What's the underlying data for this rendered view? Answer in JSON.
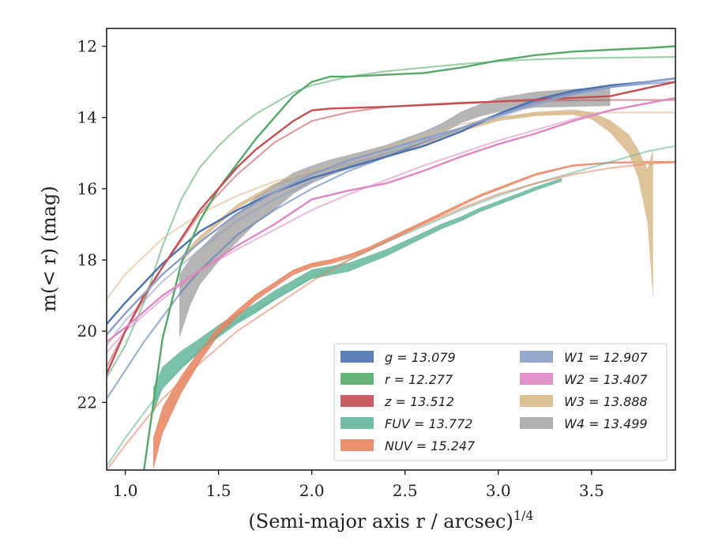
{
  "chart_data": {
    "type": "line",
    "xlabel": "(Semi-major axis r / arcsec)",
    "xlabel_exponent": "1/4",
    "ylabel": "m(< r) (mag)",
    "xlim": [
      0.9,
      3.95
    ],
    "ylim": [
      23.9,
      11.5
    ],
    "y_inverted": true,
    "x_ticks": [
      1.0,
      1.5,
      2.0,
      2.5,
      3.0,
      3.5
    ],
    "x_tick_labels": [
      "1.0",
      "1.5",
      "2.0",
      "2.5",
      "3.0",
      "3.5"
    ],
    "y_ticks": [
      12,
      14,
      16,
      18,
      20,
      22
    ],
    "y_tick_labels": [
      "12",
      "14",
      "16",
      "18",
      "20",
      "22"
    ],
    "legend_position": "lower-right",
    "series": [
      {
        "name": "g = 13.079",
        "color": "#4c72b0",
        "x": [
          0.9,
          1.0,
          1.2,
          1.4,
          1.6,
          1.8,
          2.0,
          2.2,
          2.4,
          2.6,
          2.8,
          3.0,
          3.2,
          3.4,
          3.6,
          3.8,
          3.95
        ],
        "y": [
          19.8,
          19.2,
          18.1,
          17.2,
          16.6,
          16.1,
          15.7,
          15.4,
          15.1,
          14.8,
          14.4,
          13.9,
          13.5,
          13.25,
          13.1,
          13.0,
          12.9
        ],
        "model_x": [
          0.9,
          1.0,
          1.1,
          1.2,
          1.3,
          1.4,
          1.5,
          1.6,
          1.8,
          2.0,
          2.2,
          2.4,
          2.6,
          2.8,
          3.0,
          3.2,
          3.4,
          3.6,
          3.8,
          3.95
        ],
        "model_y": [
          21.9,
          21.1,
          20.3,
          19.6,
          18.9,
          18.3,
          17.8,
          17.3,
          16.6,
          16.0,
          15.5,
          15.1,
          14.7,
          14.3,
          13.9,
          13.55,
          13.3,
          13.15,
          13.05,
          13.0
        ]
      },
      {
        "name": "r = 12.277",
        "color": "#55a868",
        "x": [
          1.1,
          1.2,
          1.3,
          1.4,
          1.5,
          1.6,
          1.7,
          1.8,
          1.9,
          2.0,
          2.1,
          2.2,
          2.4,
          2.6,
          2.8,
          3.0,
          3.2,
          3.4,
          3.6,
          3.8,
          3.95
        ],
        "y": [
          23.9,
          20.2,
          18.1,
          16.9,
          16.0,
          15.3,
          14.6,
          14.0,
          13.4,
          13.0,
          12.85,
          12.85,
          12.8,
          12.75,
          12.6,
          12.4,
          12.25,
          12.15,
          12.1,
          12.05,
          12.0
        ],
        "model_x": [
          0.9,
          1.0,
          1.1,
          1.2,
          1.3,
          1.4,
          1.5,
          1.6,
          1.7,
          1.8,
          1.9,
          2.0,
          2.2,
          2.4,
          2.6,
          2.8,
          3.0,
          3.2,
          3.4,
          3.6,
          3.8,
          3.95
        ],
        "model_y": [
          21.3,
          20.4,
          19.2,
          17.6,
          16.3,
          15.4,
          14.8,
          14.3,
          13.9,
          13.6,
          13.3,
          13.1,
          12.85,
          12.7,
          12.6,
          12.5,
          12.42,
          12.37,
          12.34,
          12.32,
          12.31,
          12.3
        ]
      },
      {
        "name": "z = 13.512",
        "color": "#c44e52",
        "x": [
          0.9,
          1.0,
          1.1,
          1.2,
          1.3,
          1.4,
          1.5,
          1.6,
          1.7,
          1.8,
          1.9,
          2.0,
          2.1,
          2.4,
          2.8,
          3.2,
          3.6,
          3.95
        ],
        "y": [
          21.2,
          20.0,
          19.0,
          18.2,
          17.4,
          16.6,
          16.0,
          15.4,
          14.9,
          14.5,
          14.1,
          13.8,
          13.75,
          13.7,
          13.6,
          13.5,
          13.4,
          13.0
        ],
        "model_x": [
          0.9,
          1.0,
          1.2,
          1.4,
          1.6,
          1.8,
          2.0,
          2.2,
          2.4,
          2.8,
          3.2,
          3.6,
          3.95
        ],
        "model_y": [
          21.0,
          20.0,
          18.2,
          16.7,
          15.6,
          14.7,
          14.1,
          13.85,
          13.7,
          13.58,
          13.53,
          13.51,
          13.51
        ]
      },
      {
        "name": "FUV = 13.772",
        "color": "#64b59b",
        "x": [
          1.15,
          1.2,
          1.3,
          1.4,
          1.5,
          1.6,
          1.7,
          1.8,
          1.9,
          2.0,
          2.1,
          2.2,
          2.3,
          2.4,
          2.5,
          2.6,
          2.7,
          2.8,
          2.9,
          3.0,
          3.1,
          3.2,
          3.34
        ],
        "y": [
          21.95,
          21.3,
          20.8,
          20.4,
          20.0,
          19.65,
          19.35,
          19.0,
          18.7,
          18.4,
          18.3,
          18.2,
          18.0,
          17.8,
          17.55,
          17.3,
          17.05,
          16.85,
          16.6,
          16.4,
          16.2,
          16.0,
          15.75
        ],
        "width": [
          0.75,
          0.6,
          0.5,
          0.4,
          0.35,
          0.3,
          0.28,
          0.28,
          0.27,
          0.27,
          0.25,
          0.25,
          0.22,
          0.2,
          0.18,
          0.16,
          0.15,
          0.14,
          0.13,
          0.12,
          0.12,
          0.11,
          0.1
        ],
        "model_x": [
          0.9,
          1.0,
          1.2,
          1.4,
          1.6,
          1.8,
          2.0,
          2.2,
          2.4,
          2.6,
          2.8,
          3.0,
          3.2,
          3.4,
          3.6,
          3.8,
          3.95
        ],
        "model_y": [
          23.8,
          23.0,
          21.6,
          20.5,
          19.7,
          19.1,
          18.5,
          18.0,
          17.5,
          17.05,
          16.6,
          16.2,
          15.85,
          15.55,
          15.25,
          14.95,
          14.8
        ]
      },
      {
        "name": "NUV = 15.247",
        "color": "#e8835f",
        "x": [
          1.15,
          1.2,
          1.3,
          1.4,
          1.5,
          1.6,
          1.7,
          1.8,
          1.9,
          2.0,
          2.1,
          2.2,
          2.3,
          2.4,
          2.5,
          2.6,
          2.7,
          2.8,
          2.9,
          3.0,
          3.2,
          3.4,
          3.6,
          3.8,
          3.95
        ],
        "y": [
          23.45,
          22.5,
          21.5,
          20.7,
          20.0,
          19.5,
          19.05,
          18.7,
          18.35,
          18.15,
          18.05,
          17.9,
          17.7,
          17.45,
          17.2,
          16.95,
          16.7,
          16.45,
          16.2,
          16.0,
          15.6,
          15.35,
          15.27,
          15.25,
          15.25
        ],
        "width": [
          0.9,
          0.75,
          0.5,
          0.35,
          0.25,
          0.2,
          0.18,
          0.16,
          0.15,
          0.14,
          0.13,
          0.12,
          0.11,
          0.1,
          0.1,
          0.09,
          0.09,
          0.08,
          0.08,
          0.08,
          0.07,
          0.06,
          0.05,
          0.05,
          0.05
        ],
        "model_x": [
          0.9,
          1.0,
          1.2,
          1.4,
          1.6,
          1.8,
          2.0,
          2.2,
          2.4,
          2.6,
          2.8,
          3.0,
          3.2,
          3.4,
          3.6,
          3.8,
          3.95
        ],
        "model_y": [
          23.9,
          23.2,
          21.9,
          20.9,
          20.0,
          19.3,
          18.6,
          18.0,
          17.5,
          17.0,
          16.55,
          16.15,
          15.85,
          15.6,
          15.42,
          15.3,
          15.26
        ]
      },
      {
        "name": "W1 = 12.907",
        "color": "#8c9fc7",
        "x": [
          0.9,
          1.0,
          1.2,
          1.4,
          1.6,
          1.8,
          2.0,
          2.2,
          2.4,
          2.6,
          2.8,
          3.0,
          3.2,
          3.4,
          3.6,
          3.8,
          3.95
        ],
        "y": [
          20.1,
          19.5,
          18.4,
          17.5,
          16.7,
          16.1,
          15.6,
          15.2,
          14.9,
          14.6,
          14.3,
          13.95,
          13.6,
          13.35,
          13.15,
          13.0,
          12.9
        ],
        "model_x": [
          0.9,
          1.0,
          1.2,
          1.4,
          1.6,
          1.8,
          2.0,
          2.2,
          2.4,
          2.6,
          2.8,
          3.0,
          3.2,
          3.4,
          3.6,
          3.8,
          3.95
        ],
        "model_y": [
          20.4,
          19.7,
          18.6,
          17.7,
          16.9,
          16.3,
          15.8,
          15.35,
          15.0,
          14.7,
          14.35,
          14.0,
          13.65,
          13.35,
          13.15,
          13.0,
          12.92
        ]
      },
      {
        "name": "W2 = 13.407",
        "color": "#dd88c3",
        "x": [
          0.9,
          1.0,
          1.2,
          1.4,
          1.6,
          1.8,
          2.0,
          2.2,
          2.4,
          2.6,
          2.8,
          3.0,
          3.2,
          3.4,
          3.6,
          3.8,
          3.95
        ],
        "y": [
          20.3,
          19.9,
          19.0,
          18.3,
          17.6,
          17.0,
          16.3,
          16.05,
          15.85,
          15.5,
          15.1,
          14.75,
          14.45,
          14.1,
          13.8,
          13.6,
          13.45
        ],
        "model_x": [
          0.9,
          1.0,
          1.2,
          1.4,
          1.6,
          1.8,
          2.0,
          2.2,
          2.4,
          2.6,
          2.8,
          3.0,
          3.2,
          3.4,
          3.6,
          3.8,
          3.95
        ],
        "model_y": [
          20.6,
          20.0,
          19.1,
          18.3,
          17.7,
          17.15,
          16.6,
          16.15,
          15.75,
          15.35,
          15.0,
          14.65,
          14.35,
          14.05,
          13.8,
          13.6,
          13.45
        ]
      },
      {
        "name": "W3 = 13.888",
        "color": "#d9b98a",
        "x": [
          1.3,
          1.4,
          1.6,
          1.8,
          2.0,
          2.2,
          2.4,
          2.6,
          2.8,
          3.0,
          3.2,
          3.4,
          3.5,
          3.6,
          3.7,
          3.75,
          3.8,
          3.83
        ],
        "y": [
          18.0,
          17.4,
          16.5,
          15.9,
          15.55,
          15.3,
          15.05,
          14.75,
          14.35,
          14.05,
          13.9,
          13.85,
          13.95,
          14.25,
          14.75,
          15.3,
          16.2,
          17.0
        ],
        "width": [
          0.2,
          0.15,
          0.12,
          0.1,
          0.1,
          0.1,
          0.1,
          0.1,
          0.1,
          0.1,
          0.12,
          0.15,
          0.2,
          0.35,
          0.55,
          0.8,
          1.5,
          4.2
        ],
        "model_x": [
          0.9,
          1.0,
          1.2,
          1.4,
          1.6,
          1.8,
          2.0,
          2.2,
          2.4,
          2.6,
          2.8,
          3.0,
          3.2,
          3.4,
          3.6,
          3.8,
          3.95
        ],
        "model_y": [
          19.1,
          18.4,
          17.4,
          16.7,
          16.2,
          15.8,
          15.5,
          15.2,
          14.85,
          14.5,
          14.2,
          14.0,
          13.9,
          13.87,
          13.86,
          13.86,
          13.86
        ]
      },
      {
        "name": "W4 = 13.499",
        "color": "#a8a8a8",
        "x": [
          1.29,
          1.35,
          1.4,
          1.5,
          1.6,
          1.7,
          1.8,
          1.9,
          2.0,
          2.1,
          2.2,
          2.3,
          2.4,
          2.5,
          2.6,
          2.7,
          2.8,
          2.9,
          3.0,
          3.2,
          3.4,
          3.6
        ],
        "y": [
          19.3,
          18.6,
          18.2,
          17.6,
          17.1,
          16.6,
          16.25,
          15.85,
          15.6,
          15.4,
          15.25,
          15.1,
          14.95,
          14.75,
          14.55,
          14.3,
          14.0,
          13.8,
          13.65,
          13.5,
          13.45,
          13.4
        ],
        "width": [
          1.8,
          1.3,
          1.0,
          0.9,
          0.8,
          0.75,
          0.7,
          0.6,
          0.5,
          0.45,
          0.4,
          0.38,
          0.36,
          0.34,
          0.32,
          0.3,
          0.32,
          0.35,
          0.4,
          0.45,
          0.5,
          0.55
        ],
        "model_x": [],
        "model_y": []
      }
    ]
  }
}
